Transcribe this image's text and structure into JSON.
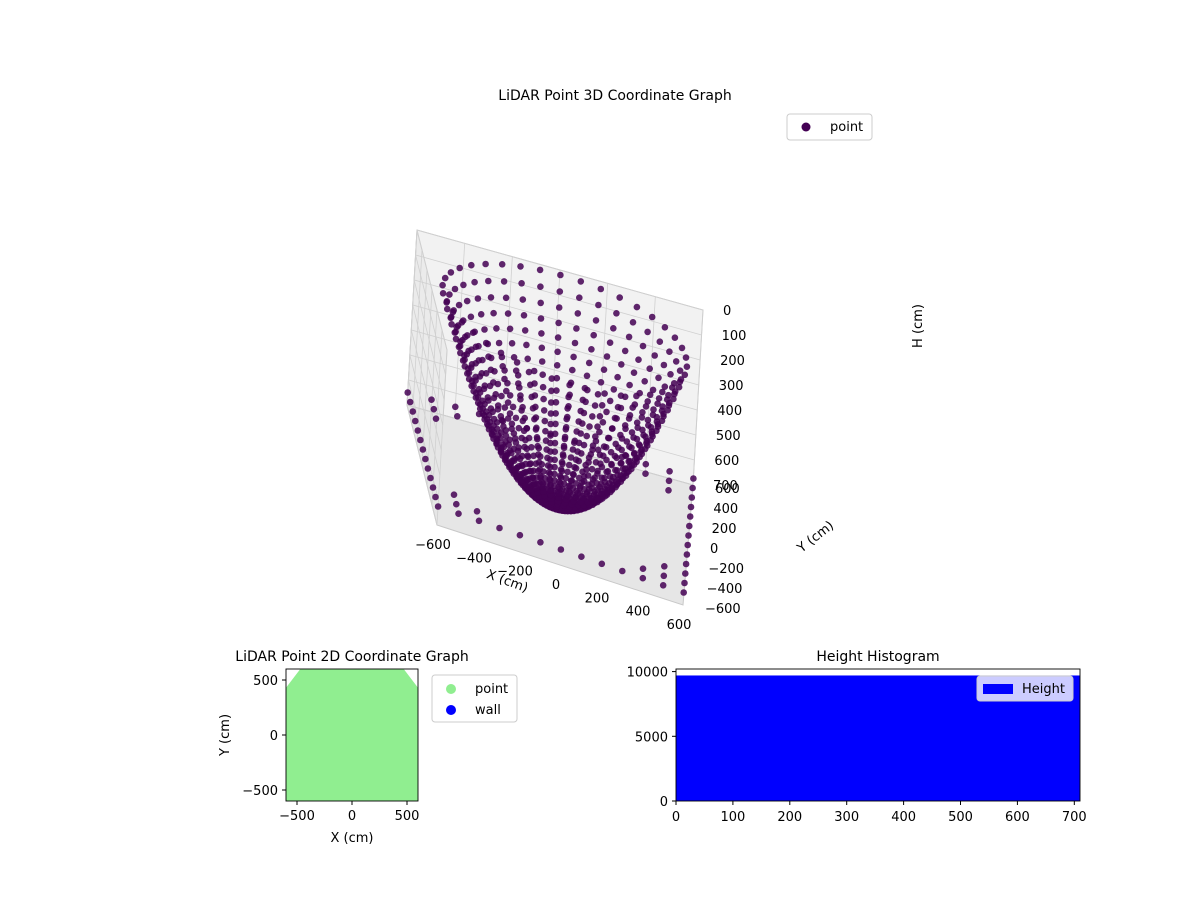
{
  "colors": {
    "points3d": "#440154",
    "pane": "#f2f2f2",
    "pane_edge": "#c8c8c8",
    "grid": "#d0d0d0",
    "scatter2d": "#90ee90",
    "wall": "#0000ff",
    "histogram": "#0000ff"
  },
  "chart_data": [
    {
      "type": "scatter3d",
      "title": "LiDAR Point 3D Coordinate Graph",
      "xlabel": "X (cm)",
      "ylabel": "Y (cm)",
      "zlabel": "H (cm)",
      "xlim": [
        -600,
        600
      ],
      "ylim": [
        -600,
        600
      ],
      "zlim": [
        0,
        700
      ],
      "z_inverted": true,
      "xticks": [
        "−600",
        "−400",
        "−200",
        "0",
        "200",
        "400",
        "600"
      ],
      "yticks": [
        "−600",
        "−400",
        "−200",
        "0",
        "200",
        "400",
        "600"
      ],
      "zticks": [
        "0",
        "100",
        "200",
        "300",
        "400",
        "500",
        "600",
        "700"
      ],
      "legend": [
        "point"
      ],
      "legend_position": "top-right",
      "series": [
        {
          "name": "point",
          "shape": "bowl of radial arcs from center to rim",
          "bowl_radius": 550,
          "bowl_depth": 700,
          "arc_count": 40,
          "points_per_arc": 24
        },
        {
          "name": "point",
          "shape": "outer floor grid",
          "grid_spacing": 100,
          "z": 650
        }
      ]
    },
    {
      "type": "scatter",
      "title": "LiDAR Point 2D Coordinate Graph",
      "xlabel": "X (cm)",
      "ylabel": "Y (cm)",
      "xlim": [
        -600,
        600
      ],
      "ylim": [
        -600,
        600
      ],
      "xticks": [
        "−500",
        "0",
        "500"
      ],
      "yticks": [
        "−500",
        "0",
        "500"
      ],
      "legend": [
        "point",
        "wall"
      ],
      "legend_position": "outside right",
      "series": [
        {
          "name": "point",
          "shape": "filled region with chamfered top corners",
          "outline": [
            [
              -600,
              -600
            ],
            [
              600,
              -600
            ],
            [
              600,
              430
            ],
            [
              470,
              600
            ],
            [
              -470,
              600
            ],
            [
              -600,
              430
            ]
          ]
        },
        {
          "name": "wall",
          "values": []
        }
      ]
    },
    {
      "type": "bar",
      "title": "Height Histogram",
      "xlim": [
        0,
        710
      ],
      "ylim": [
        0,
        10200
      ],
      "xticks": [
        "0",
        "100",
        "200",
        "300",
        "400",
        "500",
        "600",
        "700"
      ],
      "yticks": [
        "0",
        "5000",
        "10000"
      ],
      "legend": [
        "Height"
      ],
      "legend_position": "top-right",
      "series": [
        {
          "name": "Height",
          "bins": [
            [
              0,
              710,
              9700
            ]
          ]
        }
      ]
    }
  ]
}
